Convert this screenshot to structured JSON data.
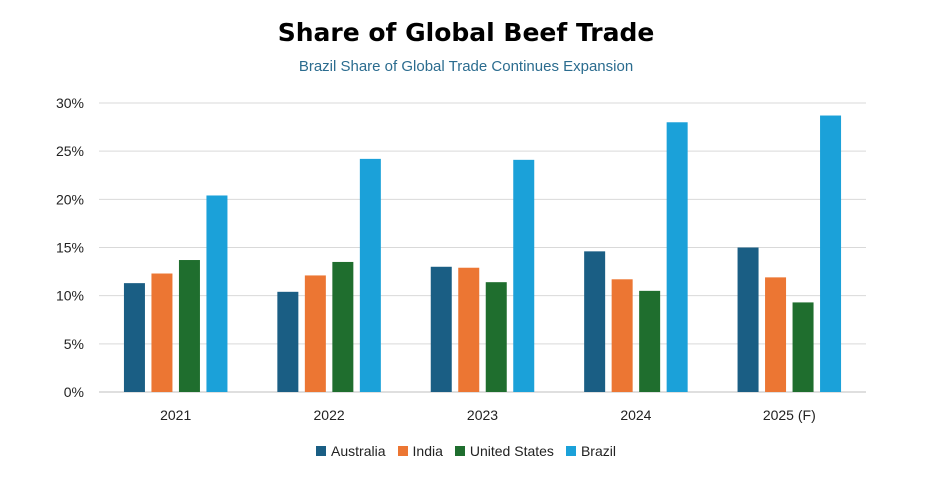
{
  "chart_data": {
    "type": "bar",
    "title": "Share of Global Beef Trade",
    "subtitle": "Brazil Share of Global Trade Continues Expansion",
    "categories": [
      "2021",
      "2022",
      "2023",
      "2024",
      "2025 (F)"
    ],
    "series": [
      {
        "name": "Australia",
        "color": "#1a5e84",
        "values": [
          11.3,
          10.4,
          13.0,
          14.6,
          15.0
        ]
      },
      {
        "name": "India",
        "color": "#ec7633",
        "values": [
          12.3,
          12.1,
          12.9,
          11.7,
          11.9
        ]
      },
      {
        "name": "United States",
        "color": "#1f6e2e",
        "values": [
          13.7,
          13.5,
          11.4,
          10.5,
          9.3
        ]
      },
      {
        "name": "Brazil",
        "color": "#1ba1d9",
        "values": [
          20.4,
          24.2,
          24.1,
          28.0,
          28.7
        ]
      }
    ],
    "ylim": [
      0,
      30
    ],
    "yticks": [
      "0%",
      "5%",
      "10%",
      "15%",
      "20%",
      "25%",
      "30%"
    ],
    "grid": true,
    "legend": "bottom"
  }
}
